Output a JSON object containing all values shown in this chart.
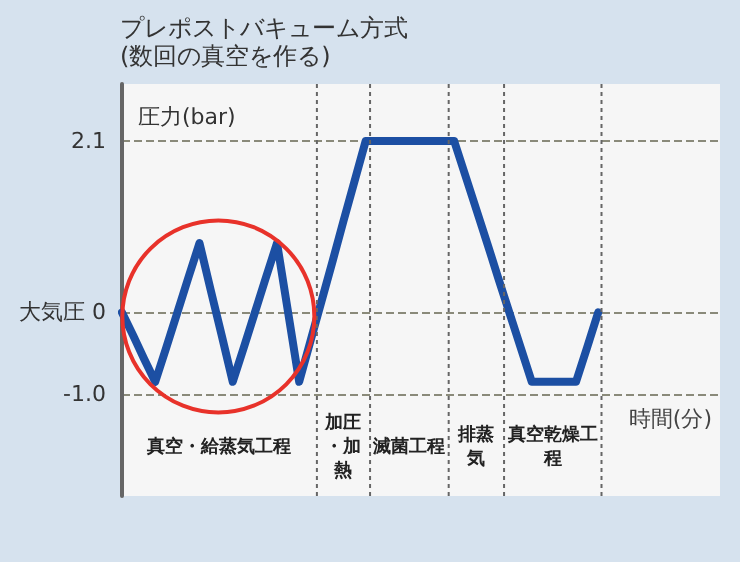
{
  "chart_data": {
    "type": "line",
    "title": "プレポストバキューム方式",
    "subtitle": "(数回の真空を作る)",
    "ylabel": "圧力(bar)",
    "xlabel": "時間(分)",
    "categories": [
      null,
      null,
      null,
      null,
      null,
      null,
      null,
      null,
      null,
      null,
      null,
      null,
      null,
      null,
      null,
      null,
      null,
      null,
      null,
      null,
      null,
      null,
      null,
      null,
      null,
      null,
      null,
      null,
      null,
      null,
      null,
      null,
      null,
      null,
      null,
      null,
      null,
      null,
      null,
      null,
      null,
      null,
      null,
      null,
      null,
      null,
      null,
      null,
      null,
      null,
      null,
      null,
      null,
      null,
      null
    ],
    "series": [
      {
        "color": "#1c4fa3",
        "values": [
          0,
          -0.28,
          -0.57,
          -0.85,
          -0.43,
          0,
          0.43,
          0.85,
          0.28,
          -0.28,
          -0.85,
          -0.43,
          0,
          0.43,
          0.85,
          0,
          -0.85,
          -0.36,
          0.13,
          0.62,
          1.12,
          1.61,
          2.1,
          2.1,
          2.1,
          2.1,
          2.1,
          2.1,
          2.1,
          2.1,
          2.1,
          1.68,
          1.26,
          0.84,
          0.41,
          -0.01,
          -0.43,
          -0.85,
          -0.85,
          -0.85,
          -0.85,
          -0.85,
          -0.43,
          0,
          null,
          null,
          null,
          null,
          null,
          null,
          null,
          null,
          null,
          null,
          null
        ]
      }
    ],
    "ylim": [
      -2.25,
      2.8
    ],
    "yticks": [
      {
        "value": -1,
        "label": "-1.0"
      },
      {
        "value": 0,
        "label": "大気圧 0"
      },
      2.1
    ],
    "tick_labels": "y",
    "grid": "y",
    "line_style": "solid",
    "annotations": [
      "真空・給蒸気工程",
      "加圧・加熱",
      "滅菌工程",
      "排蒸気",
      "真空乾燥工程"
    ]
  }
}
